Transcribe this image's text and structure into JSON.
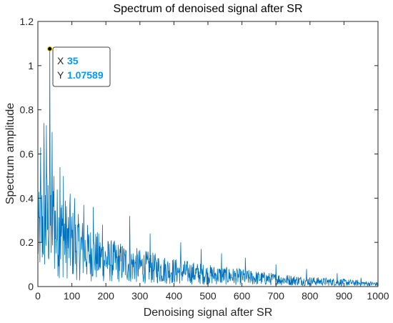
{
  "chart_data": {
    "type": "line",
    "title": "Spectrum of denoised signal after SR",
    "xlabel": "Denoising signal after SR",
    "ylabel": "Spectrum amplitude",
    "xlim": [
      0,
      1000
    ],
    "ylim": [
      0,
      1.2
    ],
    "x_ticks": [
      "0",
      "100",
      "200",
      "300",
      "400",
      "500",
      "600",
      "700",
      "800",
      "900",
      "1000"
    ],
    "y_ticks": [
      "0",
      "0.2",
      "0.4",
      "0.6",
      "0.8",
      "1",
      "1.2"
    ],
    "grid": false,
    "line_color": "#0072BD",
    "envelope": [
      [
        0,
        0.4
      ],
      [
        10,
        0.5
      ],
      [
        20,
        0.55
      ],
      [
        35,
        0.55
      ],
      [
        50,
        0.48
      ],
      [
        75,
        0.42
      ],
      [
        100,
        0.36
      ],
      [
        150,
        0.28
      ],
      [
        200,
        0.22
      ],
      [
        250,
        0.2
      ],
      [
        300,
        0.17
      ],
      [
        400,
        0.13
      ],
      [
        500,
        0.1
      ],
      [
        600,
        0.08
      ],
      [
        700,
        0.06
      ],
      [
        800,
        0.045
      ],
      [
        900,
        0.035
      ],
      [
        1000,
        0.02
      ]
    ],
    "peaks": [
      [
        8,
        0.63
      ],
      [
        18,
        0.74
      ],
      [
        25,
        0.73
      ],
      [
        35,
        1.07589
      ],
      [
        42,
        0.7
      ],
      [
        47,
        0.5
      ],
      [
        65,
        0.54
      ],
      [
        75,
        0.5
      ],
      [
        95,
        0.42
      ],
      [
        108,
        0.4
      ],
      [
        135,
        0.37
      ],
      [
        163,
        0.36
      ],
      [
        190,
        0.28
      ],
      [
        270,
        0.32
      ],
      [
        330,
        0.24
      ],
      [
        420,
        0.2
      ],
      [
        480,
        0.17
      ],
      [
        540,
        0.15
      ],
      [
        610,
        0.13
      ],
      [
        700,
        0.1
      ],
      [
        790,
        0.08
      ],
      [
        880,
        0.06
      ],
      [
        950,
        0.04
      ]
    ],
    "datatip": {
      "x_key": "X",
      "x_value": "35",
      "y_key": "Y",
      "y_value": "1.07589",
      "value_color": "#0099FF",
      "x": 35,
      "y": 1.07589
    }
  }
}
